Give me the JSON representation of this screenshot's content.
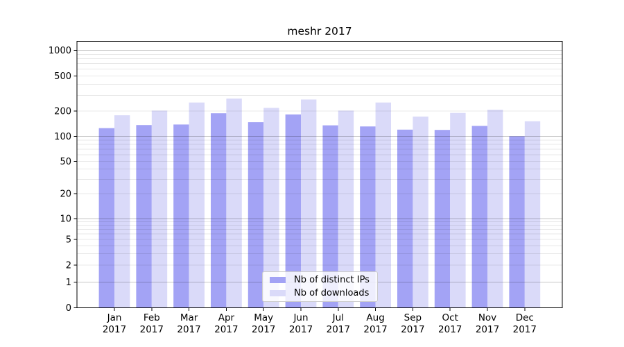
{
  "chart_data": {
    "type": "bar",
    "title": "meshr 2017",
    "categories": [
      "Jan 2017",
      "Feb 2017",
      "Mar 2017",
      "Apr 2017",
      "May 2017",
      "Jun 2017",
      "Jul 2017",
      "Aug 2017",
      "Sep 2017",
      "Oct 2017",
      "Nov 2017",
      "Dec 2017"
    ],
    "series": [
      {
        "name": "Nb of distinct IPs",
        "color": "#a3a3f5",
        "values": [
          125,
          136,
          138,
          188,
          147,
          182,
          135,
          131,
          120,
          119,
          133,
          100
        ]
      },
      {
        "name": "Nb of downloads",
        "color": "#dadaf9",
        "values": [
          178,
          202,
          250,
          277,
          217,
          270,
          202,
          250,
          172,
          190,
          207,
          151
        ]
      }
    ],
    "xlabel": "",
    "ylabel": "",
    "yscale": "symlog",
    "y_ticks": [
      0,
      1,
      2,
      5,
      10,
      20,
      50,
      100,
      200,
      500,
      1000
    ],
    "ylim": [
      0,
      1280
    ],
    "grid": true,
    "legend_position": "lower center",
    "colors": {
      "major_gridline": "#c7c7c7",
      "minor_gridline": "#e8e8e8",
      "axis": "#000000"
    }
  }
}
